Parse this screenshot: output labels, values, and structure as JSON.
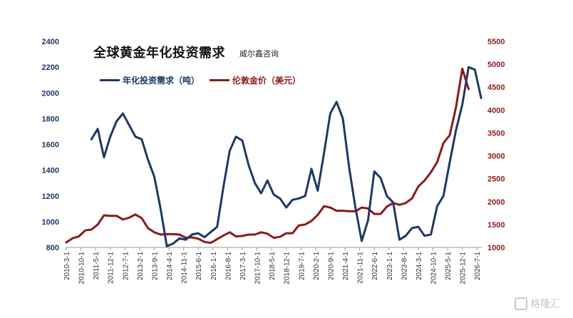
{
  "header": {
    "title": "全球黄金年化投资需求",
    "source": "威尔鑫咨询"
  },
  "watermark": {
    "text": "格隆汇"
  },
  "chart_data": {
    "type": "line",
    "title": "全球黄金年化投资需求",
    "legend_placement": "top-left",
    "grid": false,
    "left_axis": {
      "range": [
        800,
        2400
      ],
      "ticks": [
        "800",
        "1000",
        "1200",
        "1400",
        "1600",
        "1800",
        "2000",
        "2200",
        "2400"
      ],
      "color": "#1F3864"
    },
    "right_axis": {
      "range": [
        1000,
        5500
      ],
      "ticks": [
        "1000",
        "1500",
        "2000",
        "2500",
        "3000",
        "3500",
        "4000",
        "4500",
        "5000",
        "5500"
      ],
      "color": "#8B1A1A"
    },
    "x_tick_labels": [
      "2010-3-1",
      "2010-10-1",
      "2011-5-1",
      "2011-12-1",
      "2012-7-1",
      "2013-2-1",
      "2013-9-1",
      "2014-4-1",
      "2014-11-1",
      "2015-6-1",
      "2016-1-1",
      "2016-8-1",
      "2017-3-1",
      "2017-10-1",
      "2018-5-1",
      "2018-12-1",
      "2019-7-1",
      "2020-2-1",
      "2020-9-1",
      "2021-4-1",
      "2021-11-1",
      "2022-6-1",
      "2023-1-1",
      "2023-8-1",
      "2024-3-1",
      "2024-10-1",
      "2025-5-1",
      "2025-12-1",
      "2026-7-1"
    ],
    "series": [
      {
        "name": "年化投资需求（吨）",
        "axis": "left",
        "color": "#1F3864",
        "start_quarter": 4,
        "values": [
          1640,
          1720,
          1500,
          1660,
          1780,
          1840,
          1750,
          1660,
          1640,
          1480,
          1350,
          1100,
          810,
          830,
          870,
          860,
          900,
          910,
          880,
          920,
          960,
          1270,
          1550,
          1660,
          1630,
          1440,
          1300,
          1220,
          1320,
          1210,
          1180,
          1110,
          1170,
          1180,
          1200,
          1410,
          1240,
          1530,
          1840,
          1930,
          1800,
          1420,
          1110,
          850,
          1010,
          1390,
          1340,
          1200,
          1150,
          860,
          890,
          950,
          960,
          890,
          900,
          1120,
          1200,
          1460,
          1710,
          1910,
          2200,
          2180,
          1960
        ]
      },
      {
        "name": "伦敦金价（美元）",
        "axis": "right",
        "color": "#8B1A1A",
        "start_quarter": 0,
        "values": [
          1110,
          1200,
          1240,
          1370,
          1390,
          1500,
          1700,
          1690,
          1690,
          1610,
          1650,
          1720,
          1640,
          1420,
          1330,
          1280,
          1290,
          1290,
          1280,
          1210,
          1220,
          1190,
          1120,
          1100,
          1180,
          1260,
          1330,
          1240,
          1250,
          1280,
          1280,
          1330,
          1300,
          1210,
          1230,
          1310,
          1310,
          1480,
          1500,
          1580,
          1710,
          1900,
          1870,
          1800,
          1800,
          1790,
          1790,
          1870,
          1850,
          1730,
          1730,
          1890,
          1970,
          1930,
          1970,
          2070,
          2330,
          2460,
          2640,
          2860,
          3280,
          3450,
          4060,
          4900,
          4460
        ]
      }
    ]
  }
}
